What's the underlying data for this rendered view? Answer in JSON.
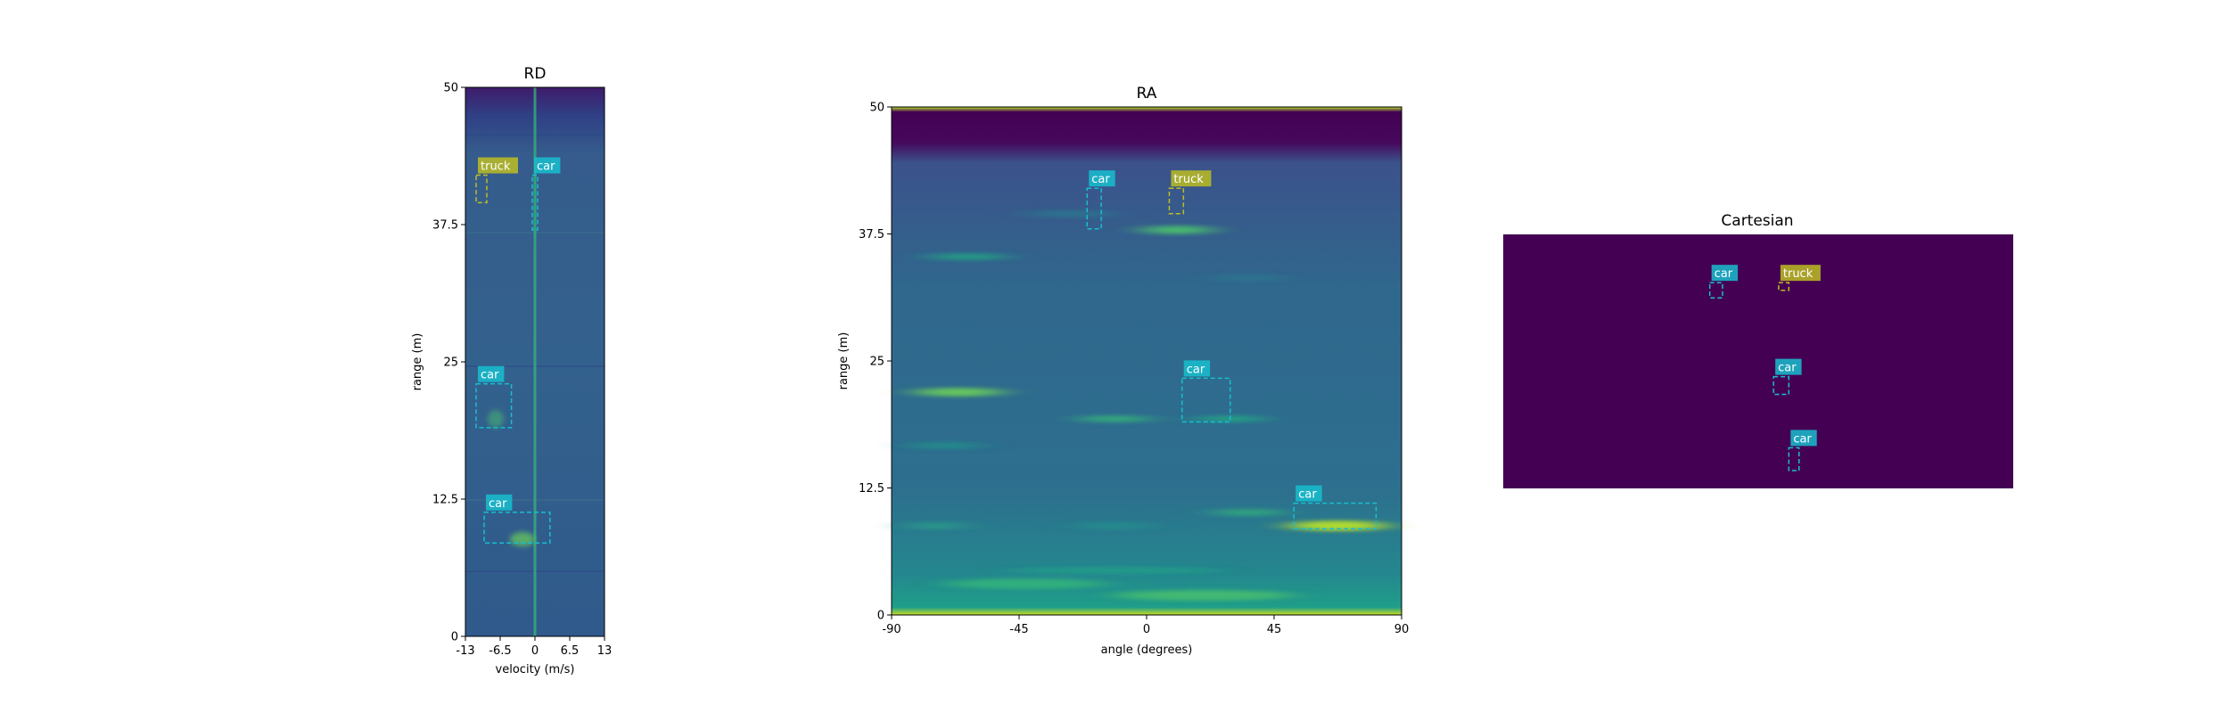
{
  "colors": {
    "car": "#17becf",
    "truck": "#bcbd22",
    "viridis_dark": "#440154",
    "viridis_mid": "#31688e",
    "viridis_bright": "#fde725"
  },
  "chart_data": [
    {
      "type": "heatmap",
      "title": "RD",
      "xlabel": "velocity (m/s)",
      "ylabel": "range (m)",
      "xlim": [
        -13,
        13
      ],
      "ylim": [
        0,
        50
      ],
      "xticks": [
        "-13",
        "-6.5",
        "0",
        "6.5",
        "13"
      ],
      "yticks": [
        "0",
        "12.5",
        "25",
        "37.5",
        "50"
      ],
      "colormap": "viridis",
      "detections": [
        {
          "label": "truck",
          "x": [
            -11,
            -9
          ],
          "y": [
            39.5,
            42
          ]
        },
        {
          "label": "car",
          "x": [
            -0.5,
            0.5
          ],
          "y": [
            37,
            42
          ]
        },
        {
          "label": "car",
          "x": [
            -11,
            -4.4
          ],
          "y": [
            19,
            23
          ]
        },
        {
          "label": "car",
          "x": [
            -9.5,
            2.8
          ],
          "y": [
            8.5,
            11.3
          ]
        }
      ]
    },
    {
      "type": "heatmap",
      "title": "RA",
      "xlabel": "angle (degrees)",
      "ylabel": "range (m)",
      "xlim": [
        -90,
        90
      ],
      "ylim": [
        0,
        50
      ],
      "xticks": [
        "-90",
        "-45",
        "0",
        "45",
        "90"
      ],
      "yticks": [
        "0",
        "12.5",
        "25",
        "37.5",
        "50"
      ],
      "colormap": "viridis",
      "detections": [
        {
          "label": "car",
          "x": [
            -21,
            -16
          ],
          "y": [
            38,
            42
          ]
        },
        {
          "label": "truck",
          "x": [
            8,
            13
          ],
          "y": [
            39.5,
            42
          ]
        },
        {
          "label": "car",
          "x": [
            12.5,
            29.5
          ],
          "y": [
            19,
            23.3
          ]
        },
        {
          "label": "car",
          "x": [
            52,
            81
          ],
          "y": [
            8.5,
            11
          ]
        }
      ]
    },
    {
      "type": "heatmap",
      "title": "Cartesian",
      "colormap": "viridis",
      "detections": [
        {
          "label": "car",
          "x": [
            0.405,
            0.43
          ],
          "y": [
            0.75,
            0.81
          ]
        },
        {
          "label": "truck",
          "x": [
            0.54,
            0.56
          ],
          "y": [
            0.78,
            0.81
          ]
        },
        {
          "label": "car",
          "x": [
            0.53,
            0.56
          ],
          "y": [
            0.37,
            0.44
          ]
        },
        {
          "label": "car",
          "x": [
            0.56,
            0.58
          ],
          "y": [
            0.07,
            0.16
          ]
        }
      ]
    }
  ]
}
